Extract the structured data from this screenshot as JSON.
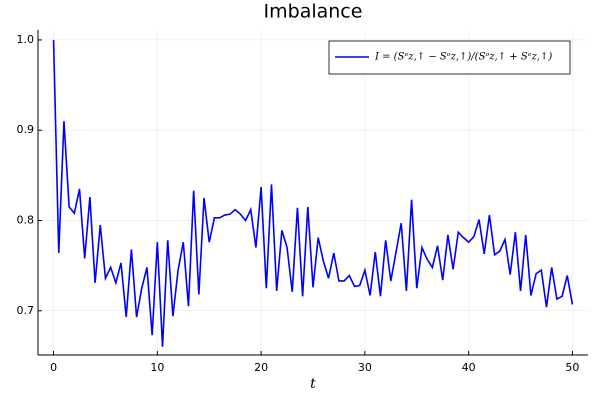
{
  "chart_data": {
    "type": "line",
    "title": "Imbalance",
    "xlabel": "t",
    "x": [
      0,
      0.5,
      1,
      1.5,
      2,
      2.5,
      3,
      3.5,
      4,
      4.5,
      5,
      5.5,
      6,
      6.5,
      7,
      7.5,
      8,
      8.5,
      9,
      9.5,
      10,
      10.5,
      11,
      11.5,
      12,
      12.5,
      13,
      13.5,
      14,
      14.5,
      15,
      15.5,
      16,
      16.5,
      17,
      17.5,
      18,
      18.5,
      19,
      19.5,
      20,
      20.5,
      21,
      21.5,
      22,
      22.5,
      23,
      23.5,
      24,
      24.5,
      25,
      25.5,
      26,
      26.5,
      27,
      27.5,
      28,
      28.5,
      29,
      29.5,
      30,
      30.5,
      31,
      31.5,
      32,
      32.5,
      33,
      33.5,
      34,
      34.5,
      35,
      35.5,
      36,
      36.5,
      37,
      37.5,
      38,
      38.5,
      39,
      39.5,
      40,
      40.5,
      41,
      41.5,
      42,
      42.5,
      43,
      43.5,
      44,
      44.5,
      45,
      45.5,
      46,
      46.5,
      47,
      47.5,
      48,
      48.5,
      49,
      49.5,
      50
    ],
    "series": [
      {
        "name": "I = (Sᵉz,↑ − Sᵒz,↑)/(Sᵒz,↑ + Sᵉz,↑)",
        "color": "#0000ff",
        "values": [
          1.0,
          0.764,
          0.91,
          0.815,
          0.808,
          0.835,
          0.758,
          0.826,
          0.731,
          0.795,
          0.736,
          0.748,
          0.731,
          0.753,
          0.693,
          0.768,
          0.693,
          0.725,
          0.748,
          0.673,
          0.776,
          0.66,
          0.778,
          0.694,
          0.745,
          0.776,
          0.705,
          0.833,
          0.718,
          0.825,
          0.776,
          0.803,
          0.803,
          0.806,
          0.807,
          0.812,
          0.807,
          0.8,
          0.812,
          0.77,
          0.837,
          0.725,
          0.84,
          0.722,
          0.789,
          0.77,
          0.721,
          0.814,
          0.716,
          0.815,
          0.726,
          0.781,
          0.755,
          0.736,
          0.764,
          0.733,
          0.733,
          0.739,
          0.727,
          0.728,
          0.745,
          0.717,
          0.765,
          0.716,
          0.778,
          0.733,
          0.765,
          0.797,
          0.722,
          0.823,
          0.725,
          0.77,
          0.757,
          0.748,
          0.772,
          0.734,
          0.784,
          0.746,
          0.787,
          0.781,
          0.776,
          0.782,
          0.801,
          0.763,
          0.806,
          0.762,
          0.766,
          0.779,
          0.74,
          0.787,
          0.722,
          0.784,
          0.717,
          0.741,
          0.745,
          0.704,
          0.748,
          0.713,
          0.716,
          0.739,
          0.707
        ]
      }
    ],
    "xlim": [
      -1.5,
      51.5
    ],
    "ylim": [
      0.651,
      1.011
    ],
    "xticks": [
      0,
      10,
      20,
      30,
      40,
      50
    ],
    "yticks": [
      {
        "value": 0.7,
        "label": "0.7"
      },
      {
        "value": 0.8,
        "label": "0.8"
      },
      {
        "value": 0.9,
        "label": "0.9"
      },
      {
        "value": 1,
        "label": "1.0"
      }
    ],
    "grid": true,
    "legend": "top-right"
  }
}
